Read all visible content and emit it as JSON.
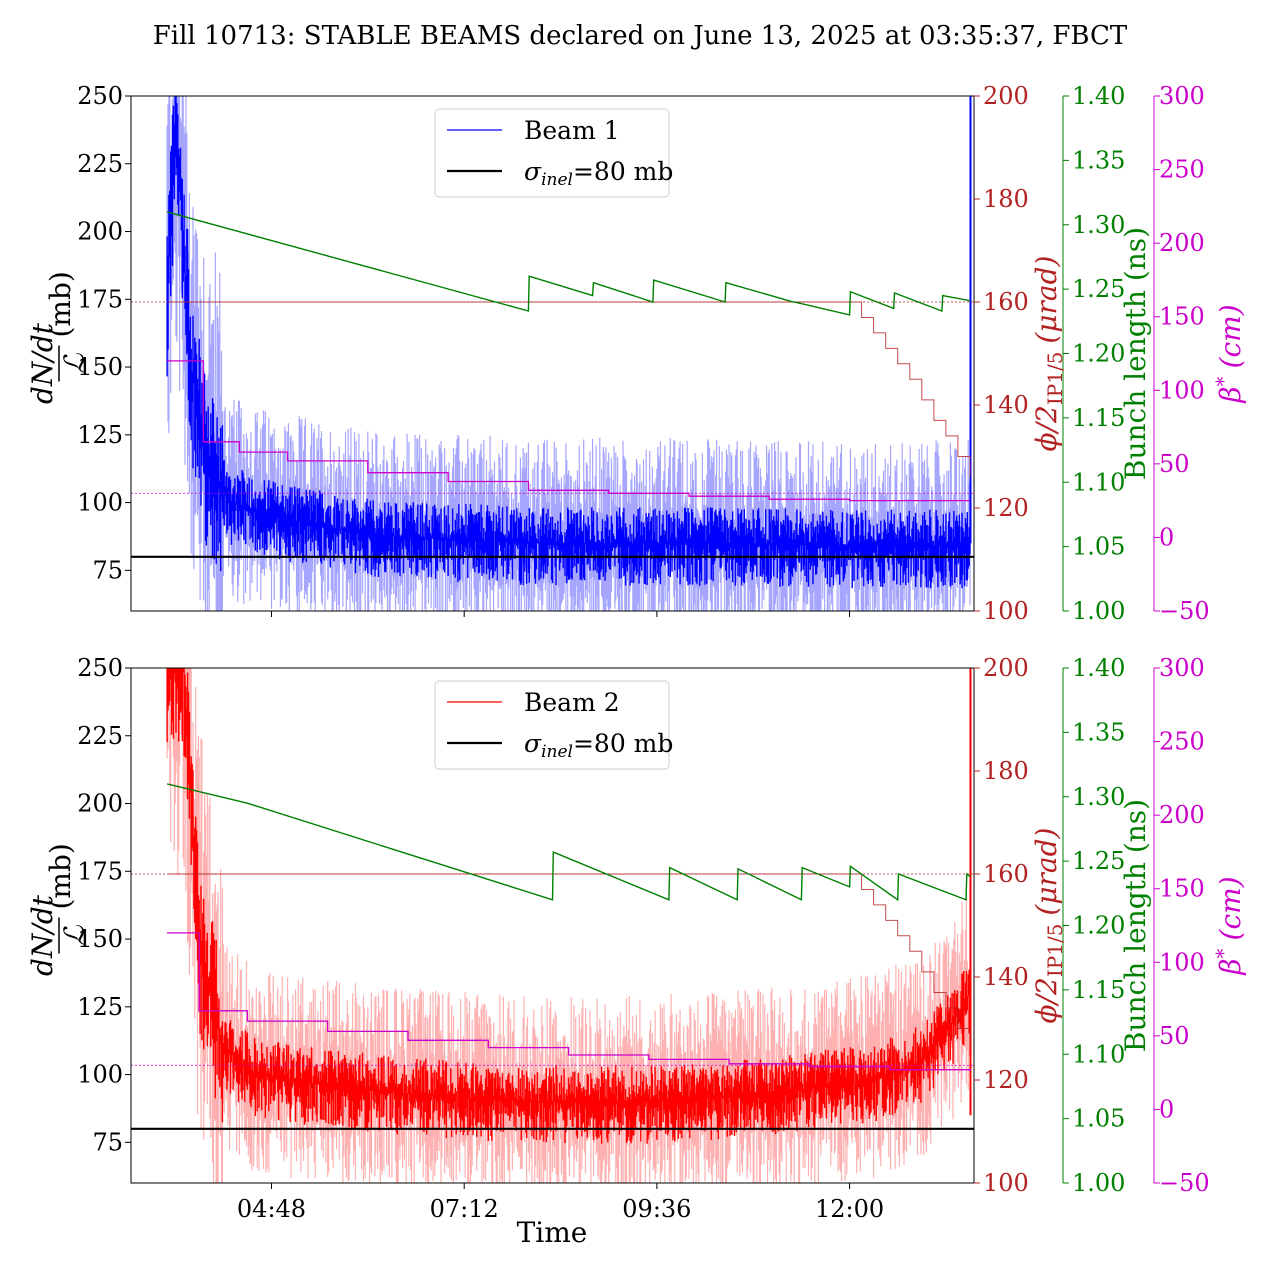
{
  "title": "Fill 10713: STABLE BEAMS declared on June 13, 2025 at 03:35:37, FBCT",
  "xlabel": "Time",
  "x_ticks": [
    "04:48",
    "07:12",
    "09:36",
    "12:00"
  ],
  "axes": {
    "left": {
      "label_num": "dN/dt",
      "label_den": "ℒ",
      "label_unit": "(mb)",
      "range": [
        60,
        250
      ],
      "ticks": [
        "75",
        "100",
        "125",
        "150",
        "175",
        "200",
        "225",
        "250"
      ],
      "color": "#000000"
    },
    "crossing": {
      "label_a": "ϕ/2",
      "label_sub": "IP1/5",
      "label_b": "(μrad)",
      "range": [
        100,
        200
      ],
      "ticks": [
        "100",
        "120",
        "140",
        "160",
        "180",
        "200"
      ],
      "color": "#b22222"
    },
    "bunch": {
      "label": "Bunch length (ns)",
      "range": [
        1.0,
        1.4
      ],
      "ticks": [
        "1.00",
        "1.05",
        "1.10",
        "1.15",
        "1.20",
        "1.25",
        "1.30",
        "1.35",
        "1.40"
      ],
      "color": "#008000"
    },
    "beta": {
      "label_a": "β",
      "label_sup": "*",
      "label_b": "(cm)",
      "range": [
        -50,
        300
      ],
      "ticks": [
        "−50",
        "0",
        "50",
        "100",
        "150",
        "200",
        "250",
        "300"
      ],
      "color": "#cc00cc"
    }
  },
  "legend": {
    "beam1": "Beam 1",
    "beam2": "Beam 2",
    "sigma_sym": "σ",
    "sigma_sub": "inel",
    "sigma_val": "=80 mb"
  },
  "colors": {
    "beam1": "#0000ff",
    "beam1_light": "#a6a6ff",
    "beam2": "#ff0000",
    "beam2_light": "#ffb0b0",
    "crossing": "#b22222",
    "bunch": "#008000",
    "beta": "#cc00cc",
    "sigma": "#000000"
  },
  "chart_data": [
    {
      "type": "line",
      "panel": "Beam 1",
      "x_range_hours": [
        3.05,
        13.55
      ],
      "series": [
        {
          "name": "Beam 1",
          "axis": "left",
          "summary": "noisy cross-section",
          "x": [
            3.5,
            3.6,
            3.7,
            3.8,
            4.0,
            4.3,
            4.8,
            6.0,
            8.0,
            10.0,
            12.0,
            13.0,
            13.5
          ],
          "y": [
            180,
            235,
            200,
            150,
            115,
            100,
            95,
            88,
            85,
            85,
            84,
            84,
            84
          ]
        },
        {
          "name": "σinel=80 mb",
          "axis": "left",
          "x": [
            3.05,
            13.55
          ],
          "y": [
            80,
            80
          ]
        },
        {
          "name": "Bunch length",
          "axis": "bunch",
          "x": [
            3.5,
            8.0,
            8.01,
            8.8,
            8.81,
            9.55,
            9.56,
            10.45,
            10.46,
            11.3,
            11.31,
            12.0,
            12.01,
            12.55,
            12.56,
            13.15,
            13.16,
            13.5
          ],
          "y": [
            1.31,
            1.233,
            1.26,
            1.245,
            1.255,
            1.24,
            1.257,
            1.24,
            1.255,
            1.24,
            1.24,
            1.23,
            1.248,
            1.235,
            1.247,
            1.233,
            1.245,
            1.241
          ]
        },
        {
          "name": "Crossing angle",
          "axis": "crossing",
          "x": [
            3.5,
            12.0,
            12.15,
            12.3,
            12.45,
            12.6,
            12.75,
            12.9,
            13.05,
            13.2,
            13.35,
            13.5
          ],
          "y": [
            160,
            160,
            157,
            154,
            151,
            148,
            145,
            141,
            137,
            134,
            130,
            126
          ]
        },
        {
          "name": "β*",
          "axis": "beta",
          "x": [
            3.5,
            3.9,
            3.95,
            4.4,
            5.0,
            6.0,
            7.0,
            8.0,
            9.0,
            10.0,
            11.0,
            12.0,
            13.5
          ],
          "y": [
            120,
            120,
            65,
            58,
            52,
            44,
            38,
            32,
            30,
            28,
            26,
            25,
            25
          ]
        }
      ]
    },
    {
      "type": "line",
      "panel": "Beam 2",
      "x_range_hours": [
        3.05,
        13.55
      ],
      "series": [
        {
          "name": "Beam 2",
          "axis": "left",
          "summary": "noisy cross-section",
          "x": [
            3.5,
            3.7,
            3.9,
            4.2,
            4.6,
            5.2,
            6.5,
            8.0,
            9.5,
            11.0,
            12.3,
            12.9,
            13.3,
            13.5
          ],
          "y": [
            250,
            250,
            150,
            110,
            100,
            97,
            93,
            90,
            90,
            93,
            98,
            105,
            120,
            130
          ]
        },
        {
          "name": "σinel=80 mb",
          "axis": "left",
          "x": [
            3.05,
            13.55
          ],
          "y": [
            80,
            80
          ]
        },
        {
          "name": "Bunch length",
          "axis": "bunch",
          "x": [
            3.5,
            4.5,
            8.3,
            8.31,
            9.75,
            9.76,
            10.6,
            10.61,
            11.4,
            11.41,
            12.0,
            12.01,
            12.6,
            12.61,
            13.45,
            13.46,
            13.5
          ],
          "y": [
            1.31,
            1.295,
            1.22,
            1.257,
            1.22,
            1.245,
            1.22,
            1.244,
            1.22,
            1.245,
            1.23,
            1.246,
            1.22,
            1.24,
            1.22,
            1.24,
            1.238
          ]
        },
        {
          "name": "Crossing angle",
          "axis": "crossing",
          "x": [
            3.5,
            12.0,
            12.15,
            12.3,
            12.45,
            12.6,
            12.75,
            12.9,
            13.05,
            13.2,
            13.35,
            13.5
          ],
          "y": [
            160,
            160,
            157,
            154,
            151,
            148,
            145,
            141,
            137,
            134,
            130,
            126
          ]
        },
        {
          "name": "β*",
          "axis": "beta",
          "x": [
            3.5,
            3.85,
            3.9,
            4.5,
            5.5,
            6.5,
            7.5,
            8.5,
            9.5,
            10.5,
            11.5,
            12.5,
            13.5
          ],
          "y": [
            120,
            120,
            67,
            60,
            53,
            47,
            42,
            37,
            34,
            31,
            29,
            27,
            26
          ]
        }
      ]
    }
  ]
}
